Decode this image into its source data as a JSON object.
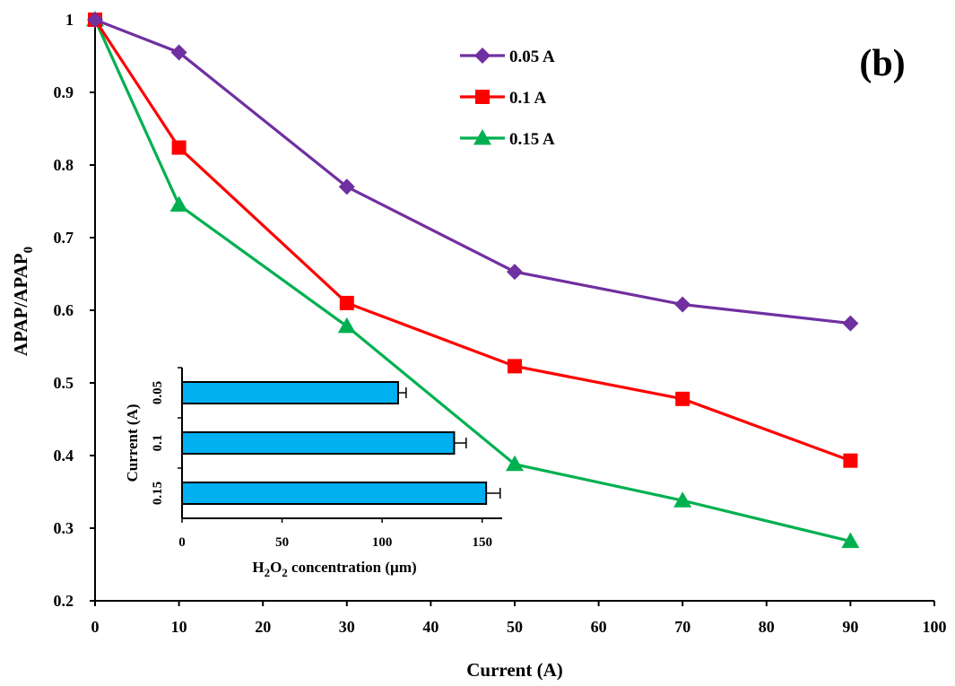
{
  "panel_label": "(b)",
  "chart_data": [
    {
      "type": "line",
      "xlabel": "Current (A)",
      "ylabel_main": "APAP/APAP",
      "ylabel_sub": "0",
      "xlim": [
        0,
        100
      ],
      "ylim": [
        0.2,
        1.0
      ],
      "xticks": [
        "0",
        "10",
        "20",
        "30",
        "40",
        "50",
        "60",
        "70",
        "80",
        "90",
        "100"
      ],
      "yticks": [
        "0.2",
        "0.3",
        "0.4",
        "0.5",
        "0.6",
        "0.7",
        "0.8",
        "0.9",
        "1"
      ],
      "legend_position": "top-center",
      "x": [
        0,
        10,
        30,
        50,
        70,
        90
      ],
      "series": [
        {
          "name": "0.05 A",
          "color": "#7030a0",
          "marker": "diamond",
          "values": [
            1.0,
            0.955,
            0.77,
            0.653,
            0.608,
            0.582
          ]
        },
        {
          "name": "0.1 A",
          "color": "#ff0000",
          "marker": "square",
          "values": [
            1.0,
            0.824,
            0.61,
            0.523,
            0.478,
            0.393
          ]
        },
        {
          "name": "0.15 A",
          "color": "#00b050",
          "marker": "triangle",
          "values": [
            1.0,
            0.745,
            0.578,
            0.388,
            0.338,
            0.282
          ]
        }
      ]
    },
    {
      "type": "bar",
      "orientation": "horizontal",
      "categories": [
        "0.05",
        "0.1",
        "0.15"
      ],
      "values": [
        108,
        136,
        152
      ],
      "errors": [
        4,
        6,
        7
      ],
      "bar_color": "#00b0f0",
      "xlim": [
        0,
        160
      ],
      "xticks": [
        "0",
        "50",
        "100",
        "150"
      ],
      "ylabel": "Current (A)",
      "xlabel_parts": [
        "H",
        "2",
        "O",
        "2",
        " concentration  (µm)"
      ]
    }
  ]
}
